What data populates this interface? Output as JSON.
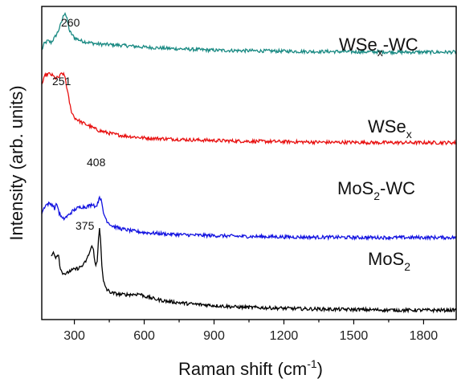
{
  "chart_data": {
    "type": "line",
    "xlabel": "Raman shift (cm-1)",
    "xlabel_parts": {
      "main": "Raman shift (cm",
      "sup": "-1",
      "close": ")"
    },
    "ylabel": "Intensity (arb. units)",
    "xlim": [
      160,
      1940
    ],
    "ylim": [
      0,
      100
    ],
    "x_ticks": [
      300,
      600,
      900,
      1200,
      1500,
      1800
    ],
    "y_ticks_labeled": false,
    "grid": false,
    "legend": "none",
    "series": [
      {
        "name": "WSex-WC",
        "label": {
          "main": "WSe",
          "sub": "x",
          "rest": "-WC"
        },
        "color": "#1a8a83",
        "points": [
          [
            160,
            86
          ],
          [
            170,
            88
          ],
          [
            185,
            89
          ],
          [
            200,
            88.5
          ],
          [
            215,
            90
          ],
          [
            230,
            92
          ],
          [
            245,
            95
          ],
          [
            255,
            97.5
          ],
          [
            260,
            98
          ],
          [
            268,
            96
          ],
          [
            280,
            92
          ],
          [
            300,
            90
          ],
          [
            330,
            89
          ],
          [
            360,
            88.5
          ],
          [
            400,
            88
          ],
          [
            450,
            87.8
          ],
          [
            500,
            87.6
          ],
          [
            600,
            87
          ],
          [
            700,
            86.6
          ],
          [
            800,
            86.3
          ],
          [
            900,
            86
          ],
          [
            1000,
            85.9
          ],
          [
            1100,
            85.8
          ],
          [
            1200,
            85.7
          ],
          [
            1300,
            85.6
          ],
          [
            1400,
            85.6
          ],
          [
            1500,
            85.5
          ],
          [
            1600,
            85.5
          ],
          [
            1700,
            85.4
          ],
          [
            1800,
            85.4
          ],
          [
            1900,
            85.4
          ],
          [
            1940,
            85.4
          ]
        ]
      },
      {
        "name": "WSex",
        "label": {
          "main": "WSe",
          "sub": "x",
          "rest": ""
        },
        "color": "#e81010",
        "points": [
          [
            160,
            75
          ],
          [
            175,
            78
          ],
          [
            190,
            78.5
          ],
          [
            205,
            78
          ],
          [
            220,
            77
          ],
          [
            235,
            77.5
          ],
          [
            245,
            78.5
          ],
          [
            251,
            78.5
          ],
          [
            260,
            77.5
          ],
          [
            270,
            73
          ],
          [
            285,
            67
          ],
          [
            300,
            64.5
          ],
          [
            330,
            63
          ],
          [
            360,
            62
          ],
          [
            400,
            60.5
          ],
          [
            450,
            59.5
          ],
          [
            500,
            58.8
          ],
          [
            600,
            58
          ],
          [
            700,
            57.7
          ],
          [
            800,
            57.4
          ],
          [
            900,
            57.2
          ],
          [
            1000,
            57
          ],
          [
            1100,
            56.9
          ],
          [
            1200,
            56.8
          ],
          [
            1300,
            56.7
          ],
          [
            1400,
            56.6
          ],
          [
            1500,
            56.6
          ],
          [
            1600,
            56.5
          ],
          [
            1700,
            56.5
          ],
          [
            1800,
            56.5
          ],
          [
            1900,
            56.5
          ],
          [
            1940,
            56.5
          ]
        ]
      },
      {
        "name": "MoS2-WC",
        "label": {
          "main": "MoS",
          "sub": "2",
          "rest": "-WC"
        },
        "color": "#1212e0",
        "points": [
          [
            160,
            34
          ],
          [
            175,
            36.5
          ],
          [
            190,
            37
          ],
          [
            205,
            36.8
          ],
          [
            215,
            35.5
          ],
          [
            225,
            37
          ],
          [
            235,
            34
          ],
          [
            250,
            32
          ],
          [
            270,
            33
          ],
          [
            290,
            34.5
          ],
          [
            310,
            35.5
          ],
          [
            330,
            36
          ],
          [
            350,
            36
          ],
          [
            370,
            36.5
          ],
          [
            380,
            37
          ],
          [
            390,
            36
          ],
          [
            400,
            37
          ],
          [
            408,
            39.5
          ],
          [
            415,
            38
          ],
          [
            425,
            34
          ],
          [
            440,
            31.5
          ],
          [
            460,
            30
          ],
          [
            500,
            29
          ],
          [
            550,
            28.3
          ],
          [
            600,
            27.8
          ],
          [
            700,
            27.3
          ],
          [
            800,
            27
          ],
          [
            900,
            26.8
          ],
          [
            1000,
            26.6
          ],
          [
            1100,
            26.5
          ],
          [
            1200,
            26.4
          ],
          [
            1300,
            26.3
          ],
          [
            1400,
            26.3
          ],
          [
            1500,
            26.2
          ],
          [
            1600,
            26.2
          ],
          [
            1700,
            26.2
          ],
          [
            1800,
            26.2
          ],
          [
            1900,
            26.2
          ],
          [
            1940,
            26.2
          ]
        ]
      },
      {
        "name": "MoS2",
        "label": {
          "main": "MoS",
          "sub": "2",
          "rest": ""
        },
        "color": "#000000",
        "points": [
          [
            200,
            20
          ],
          [
            210,
            21.5
          ],
          [
            220,
            20
          ],
          [
            232,
            21
          ],
          [
            240,
            16
          ],
          [
            250,
            15
          ],
          [
            265,
            14.5
          ],
          [
            280,
            15.5
          ],
          [
            300,
            16
          ],
          [
            320,
            16.5
          ],
          [
            340,
            17.5
          ],
          [
            355,
            19.5
          ],
          [
            368,
            22
          ],
          [
            375,
            23.5
          ],
          [
            382,
            22
          ],
          [
            392,
            17
          ],
          [
            398,
            18.5
          ],
          [
            404,
            26
          ],
          [
            408,
            29.5
          ],
          [
            412,
            26
          ],
          [
            418,
            17
          ],
          [
            425,
            12
          ],
          [
            440,
            9.5
          ],
          [
            460,
            8.5
          ],
          [
            500,
            8
          ],
          [
            550,
            8
          ],
          [
            580,
            8.2
          ],
          [
            600,
            7.5
          ],
          [
            650,
            6.5
          ],
          [
            700,
            5.8
          ],
          [
            800,
            5
          ],
          [
            900,
            4.5
          ],
          [
            1000,
            4
          ],
          [
            1100,
            3.8
          ],
          [
            1200,
            3.6
          ],
          [
            1300,
            3.4
          ],
          [
            1400,
            3.3
          ],
          [
            1500,
            3.2
          ],
          [
            1600,
            3.1
          ],
          [
            1700,
            3
          ],
          [
            1800,
            3
          ],
          [
            1900,
            3
          ],
          [
            1940,
            3
          ]
        ]
      }
    ],
    "annotations": [
      {
        "text": "260"
      },
      {
        "text": "251"
      },
      {
        "text": "408"
      },
      {
        "text": "375"
      }
    ]
  }
}
